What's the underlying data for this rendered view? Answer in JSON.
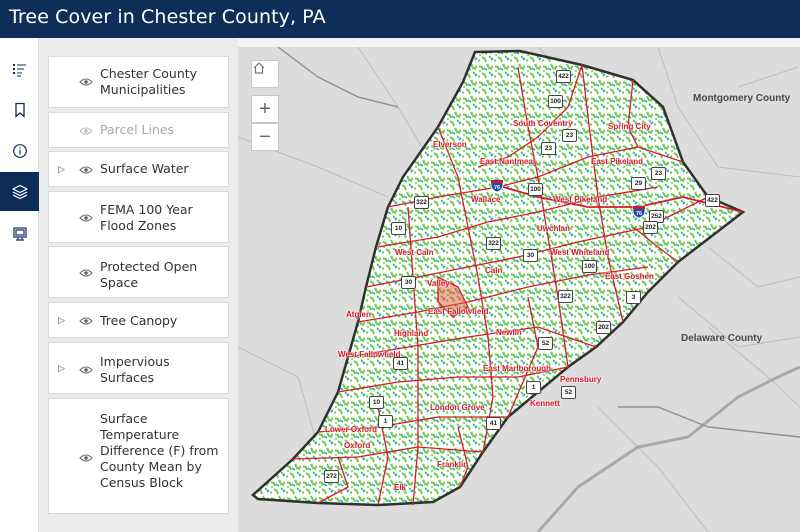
{
  "header": {
    "title": "Tree Cover in Chester County, PA"
  },
  "rail": {
    "items": [
      {
        "name": "legend-icon",
        "active": false
      },
      {
        "name": "bookmark-icon",
        "active": false
      },
      {
        "name": "info-icon",
        "active": false
      },
      {
        "name": "layers-icon",
        "active": true
      },
      {
        "name": "basemap-gallery-icon",
        "active": false
      }
    ]
  },
  "layers": [
    {
      "label": "Chester County Municipalities",
      "expandable": false,
      "visible": true
    },
    {
      "label": "Parcel Lines",
      "expandable": false,
      "visible": false
    },
    {
      "label": "Surface Water",
      "expandable": true,
      "visible": true
    },
    {
      "label": "FEMA 100 Year Flood Zones",
      "expandable": false,
      "visible": true
    },
    {
      "label": "Protected Open Space",
      "expandable": false,
      "visible": true
    },
    {
      "label": "Tree Canopy",
      "expandable": true,
      "visible": true
    },
    {
      "label": "Impervious Surfaces",
      "expandable": true,
      "visible": true
    },
    {
      "label": "Surface Temperature Difference (F) from County Mean by Census Block",
      "expandable": false,
      "visible": true
    }
  ],
  "map": {
    "controls": {
      "home": "home-icon",
      "zoom_in": "+",
      "zoom_out": "−"
    },
    "counties": [
      "Montgomery County",
      "Delaware County"
    ],
    "municipalities": [
      "South Coventry",
      "Spring City",
      "Elverson",
      "East Nantmeal",
      "East Pikeland",
      "Wallace",
      "West Pikeland",
      "Uwchlan",
      "West Caln",
      "Caln",
      "West Whiteland",
      "East Goshen",
      "Valley",
      "Atglen",
      "East Fallowfield",
      "Highland",
      "Newlin",
      "West Fallowfield",
      "East Marlborough",
      "Pennsbury",
      "London Grove",
      "Kennett",
      "Lower Oxford",
      "Oxford",
      "Franklin",
      "Elk"
    ],
    "routes": [
      "422",
      "100",
      "23",
      "23",
      "29",
      "23",
      "100",
      "422",
      "252",
      "322",
      "10",
      "322",
      "202",
      "30",
      "100",
      "30",
      "322",
      "3",
      "202",
      "52",
      "41",
      "1",
      "10",
      "1",
      "52",
      "41",
      "272"
    ],
    "interstates": [
      "76",
      "76"
    ],
    "colors": {
      "canopy": "#6ccb4d",
      "water": "#1f9fe0",
      "boundary": "#d9192b",
      "outline": "#303030",
      "header": "#0f2d59"
    }
  }
}
